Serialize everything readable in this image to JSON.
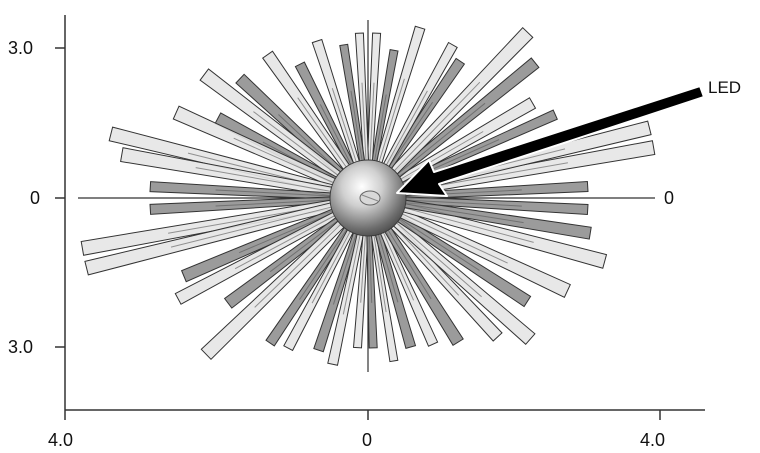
{
  "axis": {
    "y_top_label": "3.0",
    "y_mid_label": "0",
    "y_bottom_label": "3.0",
    "x_left_label": "4.0",
    "x_mid_label": "0",
    "x_right_label": "4.0",
    "ray_zero_label": "0"
  },
  "callout": {
    "label": "LED"
  },
  "colors": {
    "axis": "#333333",
    "ray_outline": "#333333",
    "ray_light": "#e6e6e6",
    "ray_dark": "#8a8a8a",
    "sphere_dark": "#444444",
    "sphere_light": "#f4f4f4",
    "arrow": "#000000"
  }
}
